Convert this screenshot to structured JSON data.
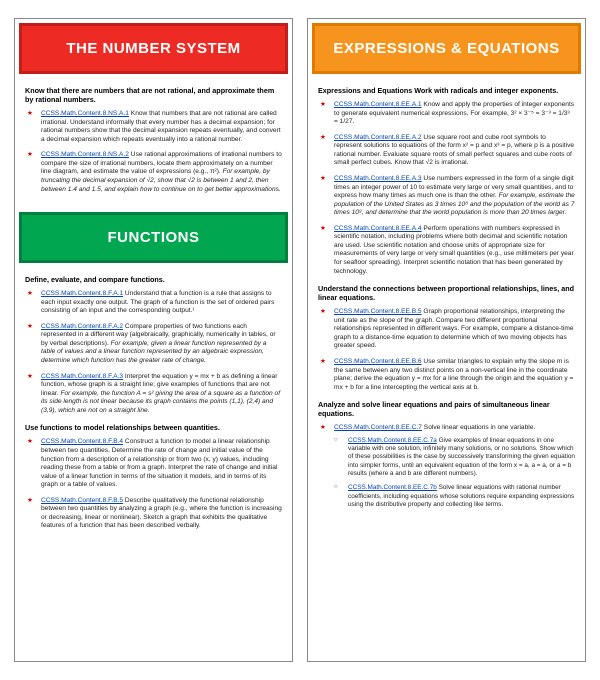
{
  "left": {
    "sections": [
      {
        "banner_class": "banner-red",
        "title": "THE NUMBER SYSTEM",
        "blocks": [
          {
            "heading": "Know that there are numbers that are not rational, and approximate them by rational numbers.",
            "items": [
              {
                "code": "CCSS.Math.Content.8.NS.A.1",
                "text": " Know that numbers that are not rational are called irrational. Understand informally that every number has a decimal expansion; for rational numbers show that the decimal expansion repeats eventually, and convert a decimal expansion which repeats eventually into a rational number."
              },
              {
                "code": "CCSS.Math.Content.8.NS.A.2",
                "text": " Use rational approximations of irrational numbers to compare the size of irrational numbers, locate them approximately on a number line diagram, and estimate the value of expressions (e.g., π²).",
                "ital": " For example, by truncating the decimal expansion of √2, show that √2 is between 1 and 2, then between 1.4 and 1.5, and explain how to continue on to get better approximations."
              }
            ]
          }
        ]
      },
      {
        "banner_class": "banner-green",
        "title": "FUNCTIONS",
        "blocks": [
          {
            "heading": "Define, evaluate, and compare functions.",
            "items": [
              {
                "code": "CCSS.Math.Content.8.F.A.1",
                "text": " Understand that a function is a rule that assigns to each input exactly one output. The graph of a function is the set of ordered pairs consisting of an input and the corresponding output.¹"
              },
              {
                "code": "CCSS.Math.Content.8.F.A.2",
                "text": " Compare properties of two functions each represented in a different way (algebraically, graphically, numerically in tables, or by verbal descriptions).",
                "ital": " For example, given a linear function represented by a table of values and a linear function represented by an algebraic expression, determine which function has the greater rate of change."
              },
              {
                "code": "CCSS.Math.Content.8.F.A.3",
                "text": " Interpret the equation y = mx + b as defining a linear function, whose graph is a straight line; give examples of functions that are not linear.",
                "ital": " For example, the function A = s² giving the area of a square as a function of its side length is not linear because its graph contains the points (1,1), (2,4) and (3,9), which are not on a straight line."
              }
            ]
          },
          {
            "heading": "Use functions to model relationships between quantities.",
            "items": [
              {
                "code": "CCSS.Math.Content.8.F.B.4",
                "text": " Construct a function to model a linear relationship between two quantities. Determine the rate of change and initial value of the function from a description of a relationship or from two (x, y) values, including reading these from a table or from a graph. Interpret the rate of change and initial value of a linear function in terms of the situation it models, and in terms of its graph or a table of values."
              },
              {
                "code": "CCSS.Math.Content.8.F.B.5",
                "text": " Describe qualitatively the functional relationship between two quantities by analyzing a graph (e.g., where the function is increasing or decreasing, linear or nonlinear). Sketch a graph that exhibits the qualitative features of a function that has been described verbally."
              }
            ]
          }
        ]
      }
    ]
  },
  "right": {
    "sections": [
      {
        "banner_class": "banner-orange",
        "title": "EXPRESSIONS & EQUATIONS",
        "blocks": [
          {
            "heading": "Expressions and Equations Work with radicals and integer exponents.",
            "items": [
              {
                "code": "CCSS.Math.Content.8.EE.A.1",
                "text": " Know and apply the properties of integer exponents to generate equivalent numerical expressions. For example, 3² × 3⁻⁵ = 3⁻³ = 1/3³ = 1/27."
              },
              {
                "code": "CCSS.Math.Content.8.EE.A.2",
                "text": " Use square root and cube root symbols to represent solutions to equations of the form x² = p and x³ = p, where p is a positive rational number. Evaluate square roots of small perfect squares and cube roots of small perfect cubes. Know that √2 is irrational."
              },
              {
                "code": "CCSS.Math.Content.8.EE.A.3",
                "text": " Use numbers expressed in the form of a single digit times an integer power of 10 to estimate very large or very small quantities, and to express how many times as much one is than the other.",
                "ital": " For example, estimate the population of the United States as 3 times 10⁸ and the population of the world as 7 times 10⁹, and determine that the world population is more than 20 times larger."
              },
              {
                "code": "CCSS.Math.Content.8.EE.A.4",
                "text": " Perform operations with numbers expressed in scientific notation, including problems where both decimal and scientific notation are used. Use scientific notation and choose units of appropriate size for measurements of very large or very small quantities (e.g., use millimeters per year for seafloor spreading). Interpret scientific notation that has been generated by technology."
              }
            ]
          },
          {
            "heading": "Understand the connections between proportional relationships, lines, and linear equations.",
            "items": [
              {
                "code": "CCSS.Math.Content.8.EE.B.5",
                "text": " Graph proportional relationships, interpreting the unit rate as the slope of the graph. Compare two different proportional relationships represented in different ways. For example, compare a distance-time graph to a distance-time equation to determine which of two moving objects has greater speed."
              },
              {
                "code": "CCSS.Math.Content.8.EE.B.6",
                "text": " Use similar triangles to explain why the slope m is the same between any two distinct points on a non-vertical line in the coordinate plane; derive the equation y = mx for a line through the origin and the equation y = mx + b for a line intercepting the vertical axis at b."
              }
            ]
          },
          {
            "heading": "Analyze and solve linear equations and pairs of simultaneous linear equations.",
            "items": [
              {
                "code": "CCSS.Math.Content.8.EE.C.7",
                "text": " Solve linear equations in one variable.",
                "sub": [
                  {
                    "code": "CCSS.Math.Content.8.EE.C.7a",
                    "text": " Give examples of linear equations in one variable with one solution, infinitely many solutions, or no solutions. Show which of these possibilities is the case by successively transforming the given equation into simpler forms, until an equivalent equation of the form x = a, a = a, or a = b results (where a and b are different numbers)."
                  },
                  {
                    "code": "CCSS.Math.Content.8.EE.C.7b",
                    "text": " Solve linear equations with rational number coefficients, including equations whose solutions require expanding expressions using the distributive property and collecting like terms."
                  }
                ]
              }
            ]
          }
        ]
      }
    ]
  }
}
